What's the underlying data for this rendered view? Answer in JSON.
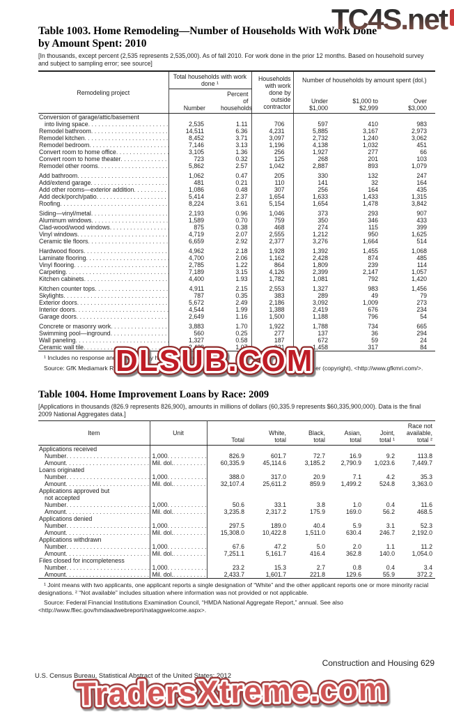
{
  "watermarks": {
    "top": "TC4S.net",
    "middle": "DLSUB.COM",
    "bottom": "TradersXtreme.com",
    "middle_color": "#c01f26",
    "bottom_color": "#d15555",
    "top_gradient_top": "#2e2e2e",
    "top_gradient_bottom": "#9b5c50"
  },
  "page": {
    "footer_left": "U.S. Census Bureau, Statistical Abstract of the United States: 2012",
    "footer_right": "Construction and Housing  629"
  },
  "table1003": {
    "title1": "Table 1003. Home Remodeling—Number of Households With Work Done",
    "title2": "by Amount Spent: 2010",
    "note": "[In thousands, except percent (2,535 represents 2,535,000). As of fall 2010. For work done in the prior 12 months. Based on household survey and subject to sampling error; see source]",
    "header": {
      "project": "Remodeling project",
      "group_total": "Total households with work done ¹",
      "number": "Number",
      "percent": "Percent of households",
      "contractor": "Households with work done by outside contractor",
      "group_amount": "Number of households by amount spent (dol.)",
      "under": "Under $1,000",
      "mid": "$1,000 to $2,999",
      "over": "Over $3,000"
    },
    "rows": [
      {
        "label": "Conversion of garage/attic/basement"
      },
      {
        "label": "into living space",
        "indent": 1,
        "values": [
          "2,535",
          "1.11",
          "706",
          "597",
          "410",
          "983"
        ]
      },
      {
        "label": "Remodel bathroom",
        "values": [
          "14,511",
          "6.36",
          "4,231",
          "5,885",
          "3,167",
          "2,973"
        ]
      },
      {
        "label": "Remodel kitchen",
        "values": [
          "8,452",
          "3.71",
          "3,097",
          "2,732",
          "1,240",
          "3,062"
        ]
      },
      {
        "label": "Remodel bedroom",
        "values": [
          "7,146",
          "3.13",
          "1,196",
          "4,138",
          "1,032",
          "451"
        ]
      },
      {
        "label": "Convert room to home office",
        "values": [
          "3,105",
          "1.36",
          "256",
          "1,927",
          "277",
          "66"
        ]
      },
      {
        "label": "Convert room to home theater",
        "values": [
          "723",
          "0.32",
          "125",
          "268",
          "201",
          "103"
        ]
      },
      {
        "label": "Remodel other rooms",
        "values": [
          "5,862",
          "2.57",
          "1,042",
          "2,887",
          "893",
          "1,079"
        ]
      },
      {
        "label": "Add bathroom",
        "gap": true,
        "values": [
          "1,062",
          "0.47",
          "205",
          "330",
          "132",
          "247"
        ]
      },
      {
        "label": "Add/extend garage",
        "values": [
          "481",
          "0.21",
          "110",
          "141",
          "32",
          "164"
        ]
      },
      {
        "label": "Add other rooms—exterior addition",
        "values": [
          "1,086",
          "0.48",
          "307",
          "256",
          "164",
          "435"
        ]
      },
      {
        "label": "Add deck/porch/patio",
        "values": [
          "5,414",
          "2.37",
          "1,654",
          "1,633",
          "1,433",
          "1,315"
        ]
      },
      {
        "label": "Roofing",
        "values": [
          "8,224",
          "3.61",
          "5,154",
          "1,654",
          "1,478",
          "3,842"
        ]
      },
      {
        "label": "Siding—vinyl/metal",
        "gap": true,
        "values": [
          "2,193",
          "0.96",
          "1,046",
          "373",
          "293",
          "907"
        ]
      },
      {
        "label": "Aluminum windows",
        "values": [
          "1,589",
          "0.70",
          "759",
          "350",
          "346",
          "433"
        ]
      },
      {
        "label": "Clad-wood/wood windows",
        "values": [
          "875",
          "0.38",
          "468",
          "274",
          "115",
          "399"
        ]
      },
      {
        "label": "Vinyl windows",
        "values": [
          "4,719",
          "2.07",
          "2,555",
          "1,212",
          "950",
          "1,625"
        ]
      },
      {
        "label": "Ceramic tile floors",
        "values": [
          "6,659",
          "2.92",
          "2,377",
          "3,276",
          "1,664",
          "514"
        ]
      },
      {
        "label": "Hardwood floors",
        "gap": true,
        "values": [
          "4,962",
          "2.18",
          "1,928",
          "1,392",
          "1,455",
          "1,068"
        ]
      },
      {
        "label": "Laminate flooring",
        "values": [
          "4,700",
          "2.06",
          "1,162",
          "2,428",
          "874",
          "485"
        ]
      },
      {
        "label": "Vinyl flooring",
        "values": [
          "2,785",
          "1.22",
          "864",
          "1,809",
          "239",
          "114"
        ]
      },
      {
        "label": "Carpeting",
        "values": [
          "7,189",
          "3.15",
          "4,126",
          "2,399",
          "2,147",
          "1,057"
        ]
      },
      {
        "label": "Kitchen cabinets",
        "values": [
          "4,400",
          "1.93",
          "1,782",
          "1,081",
          "792",
          "1,420"
        ]
      },
      {
        "label": "Kitchen counter tops",
        "gap": true,
        "values": [
          "4,911",
          "2.15",
          "2,553",
          "1,327",
          "983",
          "1,456"
        ]
      },
      {
        "label": "Skylights",
        "values": [
          "787",
          "0.35",
          "383",
          "289",
          "49",
          "79"
        ]
      },
      {
        "label": "Exterior doors",
        "values": [
          "5,672",
          "2.49",
          "2,186",
          "3,092",
          "1,009",
          "273"
        ]
      },
      {
        "label": "Interior doors",
        "values": [
          "4,544",
          "1.99",
          "1,388",
          "2,419",
          "676",
          "234"
        ]
      },
      {
        "label": "Garage doors",
        "values": [
          "2,649",
          "1.16",
          "1,500",
          "1,188",
          "796",
          "54"
        ]
      },
      {
        "label": "Concrete or masonry work",
        "gap": true,
        "values": [
          "3,883",
          "1.70",
          "1,922",
          "1,788",
          "734",
          "665"
        ]
      },
      {
        "label": "Swimming pool—inground",
        "values": [
          "560",
          "0.25",
          "277",
          "137",
          "36",
          "294"
        ]
      },
      {
        "label": "Wall paneling",
        "values": [
          "1,327",
          "0.58",
          "187",
          "672",
          "59",
          "24"
        ]
      },
      {
        "label": "Ceramic wall tile",
        "values": [
          "2,439",
          "1.07",
          "921",
          "1,458",
          "317",
          "84"
        ]
      }
    ],
    "footnote": "¹ Includes no response and work done by household members.",
    "source": "Source: GfK Mediamark Research & Intelligence, LLC, New York, NY, Survey of the American Consumer (copyright), <http://www.gfkmri.com/>."
  },
  "table1004": {
    "title": "Table 1004. Home Improvement Loans by Race: 2009",
    "note": "[Applications in thousands (826.9 represents 826,900), amounts in millions of dollars (60,335.9 represents $60,335,900,000). Data is the final 2009 National Aggregates data.]",
    "header": {
      "item": "Item",
      "unit": "Unit",
      "total": "Total",
      "white": "White, total",
      "black": "Black, total",
      "asian": "Asian, total",
      "joint": "Joint, total ¹",
      "race_na": "Race not available, total ²"
    },
    "rows": [
      {
        "label": "Applications received"
      },
      {
        "label": "Number",
        "indent": 1,
        "unit": "1,000",
        "values": [
          "826.9",
          "601.7",
          "72.7",
          "16.9",
          "9.2",
          "113.8"
        ]
      },
      {
        "label": "Amount",
        "indent": 1,
        "unit": "Mil. dol.",
        "values": [
          "60,335.9",
          "45,114.6",
          "3,185.2",
          "2,790.9",
          "1,023.6",
          "7,449.7"
        ]
      },
      {
        "label": "Loans originated"
      },
      {
        "label": "Number",
        "indent": 1,
        "unit": "1,000",
        "values": [
          "388.0",
          "317.0",
          "20.9",
          "7.1",
          "4.2",
          "35.3"
        ]
      },
      {
        "label": "Amount",
        "indent": 1,
        "unit": "Mil. dol.",
        "values": [
          "32,107.4",
          "25,611.2",
          "859.9",
          "1,499.2",
          "524.8",
          "3,363.0"
        ]
      },
      {
        "label": "Applications approved but"
      },
      {
        "label": "not accepted",
        "indent": 1
      },
      {
        "label": "Number",
        "indent": 1,
        "unit": "1,000",
        "values": [
          "50.6",
          "33.1",
          "3.8",
          "1.0",
          "0.4",
          "11.6"
        ]
      },
      {
        "label": "Amount",
        "indent": 1,
        "unit": "Mil. dol.",
        "values": [
          "3,235.8",
          "2,317.2",
          "175.9",
          "169.0",
          "56.2",
          "468.5"
        ]
      },
      {
        "label": "Applications denied"
      },
      {
        "label": "Number",
        "indent": 1,
        "unit": "1,000",
        "values": [
          "297.5",
          "189.0",
          "40.4",
          "5.9",
          "3.1",
          "52.3"
        ]
      },
      {
        "label": "Amount",
        "indent": 1,
        "unit": "Mil. dol.",
        "values": [
          "15,308.0",
          "10,422.8",
          "1,511.0",
          "630.4",
          "246.7",
          "2,192.0"
        ]
      },
      {
        "label": "Applications withdrawn"
      },
      {
        "label": "Number",
        "indent": 1,
        "unit": "1,000",
        "values": [
          "67.6",
          "47.2",
          "5.0",
          "2.0",
          "1.1",
          "11.2"
        ]
      },
      {
        "label": "Amount",
        "indent": 1,
        "unit": "Mil. dol.",
        "values": [
          "7,251.1",
          "5,161.7",
          "416.4",
          "362.8",
          "140.0",
          "1,054.0"
        ]
      },
      {
        "label": "Files closed for incompleteness"
      },
      {
        "label": "Number",
        "indent": 1,
        "unit": "1,000",
        "values": [
          "23.2",
          "15.3",
          "2.7",
          "0.8",
          "0.4",
          "3.4"
        ]
      },
      {
        "label": "Amount",
        "indent": 1,
        "unit": "Mil. dol.",
        "values": [
          "2,433.7",
          "1,601.7",
          "221.8",
          "129.6",
          "55.9",
          "372.2"
        ]
      }
    ],
    "footnote": "¹ Joint means with two applicants, one applicant reports a single designation of “White” and the other applicant reports one or more minority racial designations. ² “Not available” includes situation where information was not provided or not applicable.",
    "source": "Source: Federal Financial Institutions Examination Council, “HMDA National Aggregate Report,” annual. See also <http://www.ffiec.gov/hmdaadwebreport/nataggwelcome.aspx>."
  }
}
